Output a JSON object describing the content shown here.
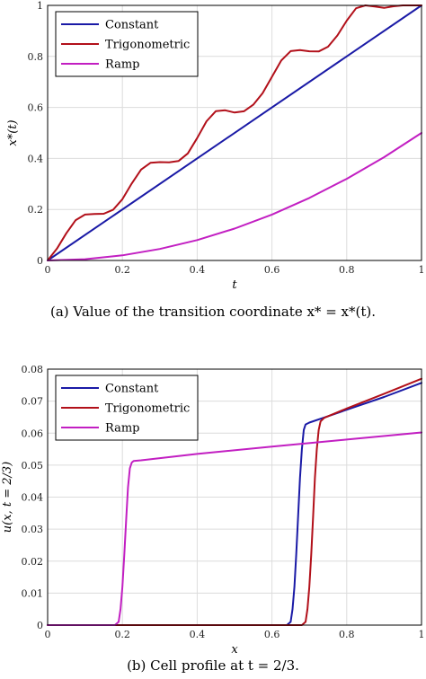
{
  "colors": {
    "constant": "#1a1aa6",
    "trigonometric": "#b2101a",
    "ramp": "#c21fc2"
  },
  "captions": {
    "a": "(a) Value of the transition coordinate x* = x*(t).",
    "b": "(b) Cell profile at t = 2/3."
  },
  "chart_data": [
    {
      "type": "line",
      "xlabel": "t",
      "ylabel": "x*(t)",
      "xlim": [
        0,
        1
      ],
      "ylim": [
        0,
        1
      ],
      "xticks": [
        "0",
        "0.2",
        "0.4",
        "0.6",
        "0.8",
        "1"
      ],
      "yticks": [
        "0",
        "0.2",
        "0.4",
        "0.6",
        "0.8",
        "1"
      ],
      "grid": true,
      "legend_position": "top-left",
      "series": [
        {
          "name": "Constant",
          "x": [
            0,
            1
          ],
          "y": [
            0,
            1
          ]
        },
        {
          "name": "Trigonometric",
          "x": [
            0,
            0.025,
            0.05,
            0.075,
            0.1,
            0.125,
            0.15,
            0.175,
            0.2,
            0.225,
            0.25,
            0.275,
            0.3,
            0.325,
            0.35,
            0.375,
            0.4,
            0.425,
            0.45,
            0.475,
            0.5,
            0.525,
            0.55,
            0.575,
            0.6,
            0.625,
            0.65,
            0.675,
            0.7,
            0.725,
            0.75,
            0.775,
            0.8,
            0.825,
            0.85,
            0.875,
            0.9,
            0.925,
            0.95,
            0.975,
            1
          ],
          "y": [
            0,
            0.0464,
            0.1068,
            0.1582,
            0.18,
            0.1823,
            0.1832,
            0.1986,
            0.24,
            0.3016,
            0.3564,
            0.3826,
            0.3855,
            0.3845,
            0.3898,
            0.4198,
            0.48,
            0.5458,
            0.5857,
            0.5888,
            0.58,
            0.585,
            0.6106,
            0.6558,
            0.72,
            0.7841,
            0.8209,
            0.8251,
            0.82,
            0.8195,
            0.838,
            0.8822,
            0.94,
            0.9889,
            1.0,
            0.9955,
            0.99,
            0.9965,
            1.0,
            1.0,
            1.0
          ]
        },
        {
          "name": "Ramp",
          "x": [
            0,
            0.1,
            0.2,
            0.3,
            0.4,
            0.5,
            0.6,
            0.7,
            0.8,
            0.9,
            1
          ],
          "y": [
            0,
            0.005,
            0.02,
            0.045,
            0.08,
            0.125,
            0.18,
            0.245,
            0.32,
            0.405,
            0.5
          ]
        }
      ]
    },
    {
      "type": "line",
      "xlabel": "x",
      "ylabel": "u(x, t = 2/3)",
      "xlim": [
        0,
        1
      ],
      "ylim": [
        0,
        0.08
      ],
      "xticks": [
        "0",
        "0.2",
        "0.4",
        "0.6",
        "0.8",
        "1"
      ],
      "yticks": [
        "0",
        "0.01",
        "0.02",
        "0.03",
        "0.04",
        "0.05",
        "0.06",
        "0.07",
        "0.08"
      ],
      "grid": true,
      "legend_position": "top-left",
      "series": [
        {
          "name": "Constant",
          "x": [
            0,
            0.64,
            0.65,
            0.655,
            0.66,
            0.665,
            0.67,
            0.675,
            0.68,
            0.685,
            0.69,
            0.7,
            0.75,
            0.8,
            0.9,
            1.0
          ],
          "y": [
            0,
            0,
            0.001,
            0.005,
            0.012,
            0.022,
            0.034,
            0.046,
            0.055,
            0.061,
            0.0627,
            0.0633,
            0.0653,
            0.0673,
            0.0713,
            0.0757
          ]
        },
        {
          "name": "Trigonometric",
          "x": [
            0,
            0.68,
            0.69,
            0.695,
            0.7,
            0.705,
            0.71,
            0.715,
            0.72,
            0.725,
            0.73,
            0.74,
            0.8,
            0.9,
            1.0
          ],
          "y": [
            0,
            0,
            0.001,
            0.005,
            0.012,
            0.022,
            0.034,
            0.046,
            0.055,
            0.061,
            0.0637,
            0.0648,
            0.0677,
            0.0723,
            0.077
          ]
        },
        {
          "name": "Ramp",
          "x": [
            0,
            0.18,
            0.19,
            0.195,
            0.2,
            0.205,
            0.21,
            0.215,
            0.22,
            0.225,
            0.23,
            0.25,
            0.4,
            0.6,
            0.8,
            1.0
          ],
          "y": [
            0,
            0,
            0.001,
            0.005,
            0.012,
            0.022,
            0.033,
            0.043,
            0.049,
            0.0508,
            0.0513,
            0.0515,
            0.0535,
            0.0558,
            0.058,
            0.0602
          ]
        }
      ]
    }
  ]
}
